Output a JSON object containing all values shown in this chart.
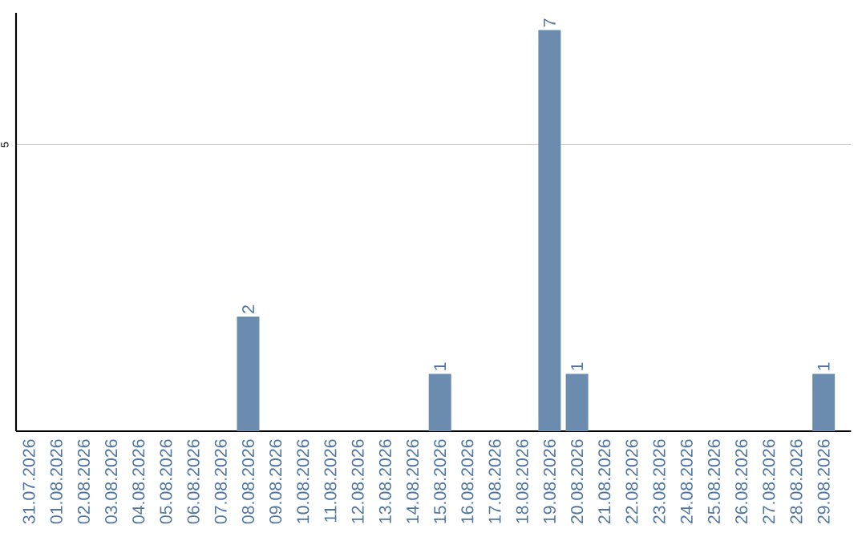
{
  "chart_data": {
    "type": "bar",
    "categories": [
      "31.07.2026",
      "01.08.2026",
      "02.08.2026",
      "03.08.2026",
      "04.08.2026",
      "05.08.2026",
      "06.08.2026",
      "07.08.2026",
      "08.08.2026",
      "09.08.2026",
      "10.08.2026",
      "11.08.2026",
      "12.08.2026",
      "13.08.2026",
      "14.08.2026",
      "15.08.2026",
      "16.08.2026",
      "17.08.2026",
      "18.08.2026",
      "19.08.2026",
      "20.08.2026",
      "21.08.2026",
      "22.08.2026",
      "23.08.2026",
      "24.08.2026",
      "25.08.2026",
      "26.08.2026",
      "27.08.2026",
      "28.08.2026",
      "29.08.2026"
    ],
    "values": [
      0,
      0,
      0,
      0,
      0,
      0,
      0,
      0,
      2,
      0,
      0,
      0,
      0,
      0,
      0,
      1,
      0,
      0,
      0,
      7,
      1,
      0,
      0,
      0,
      0,
      0,
      0,
      0,
      0,
      1
    ],
    "value_labels": [
      null,
      null,
      null,
      null,
      null,
      null,
      null,
      null,
      "2",
      null,
      null,
      null,
      null,
      null,
      null,
      "1",
      null,
      null,
      null,
      "7",
      "1",
      null,
      null,
      null,
      null,
      null,
      null,
      null,
      null,
      "1"
    ],
    "color": "#6b8cae",
    "ylim": [
      0,
      7.3
    ],
    "yticks": [
      5
    ],
    "grid": "y"
  }
}
